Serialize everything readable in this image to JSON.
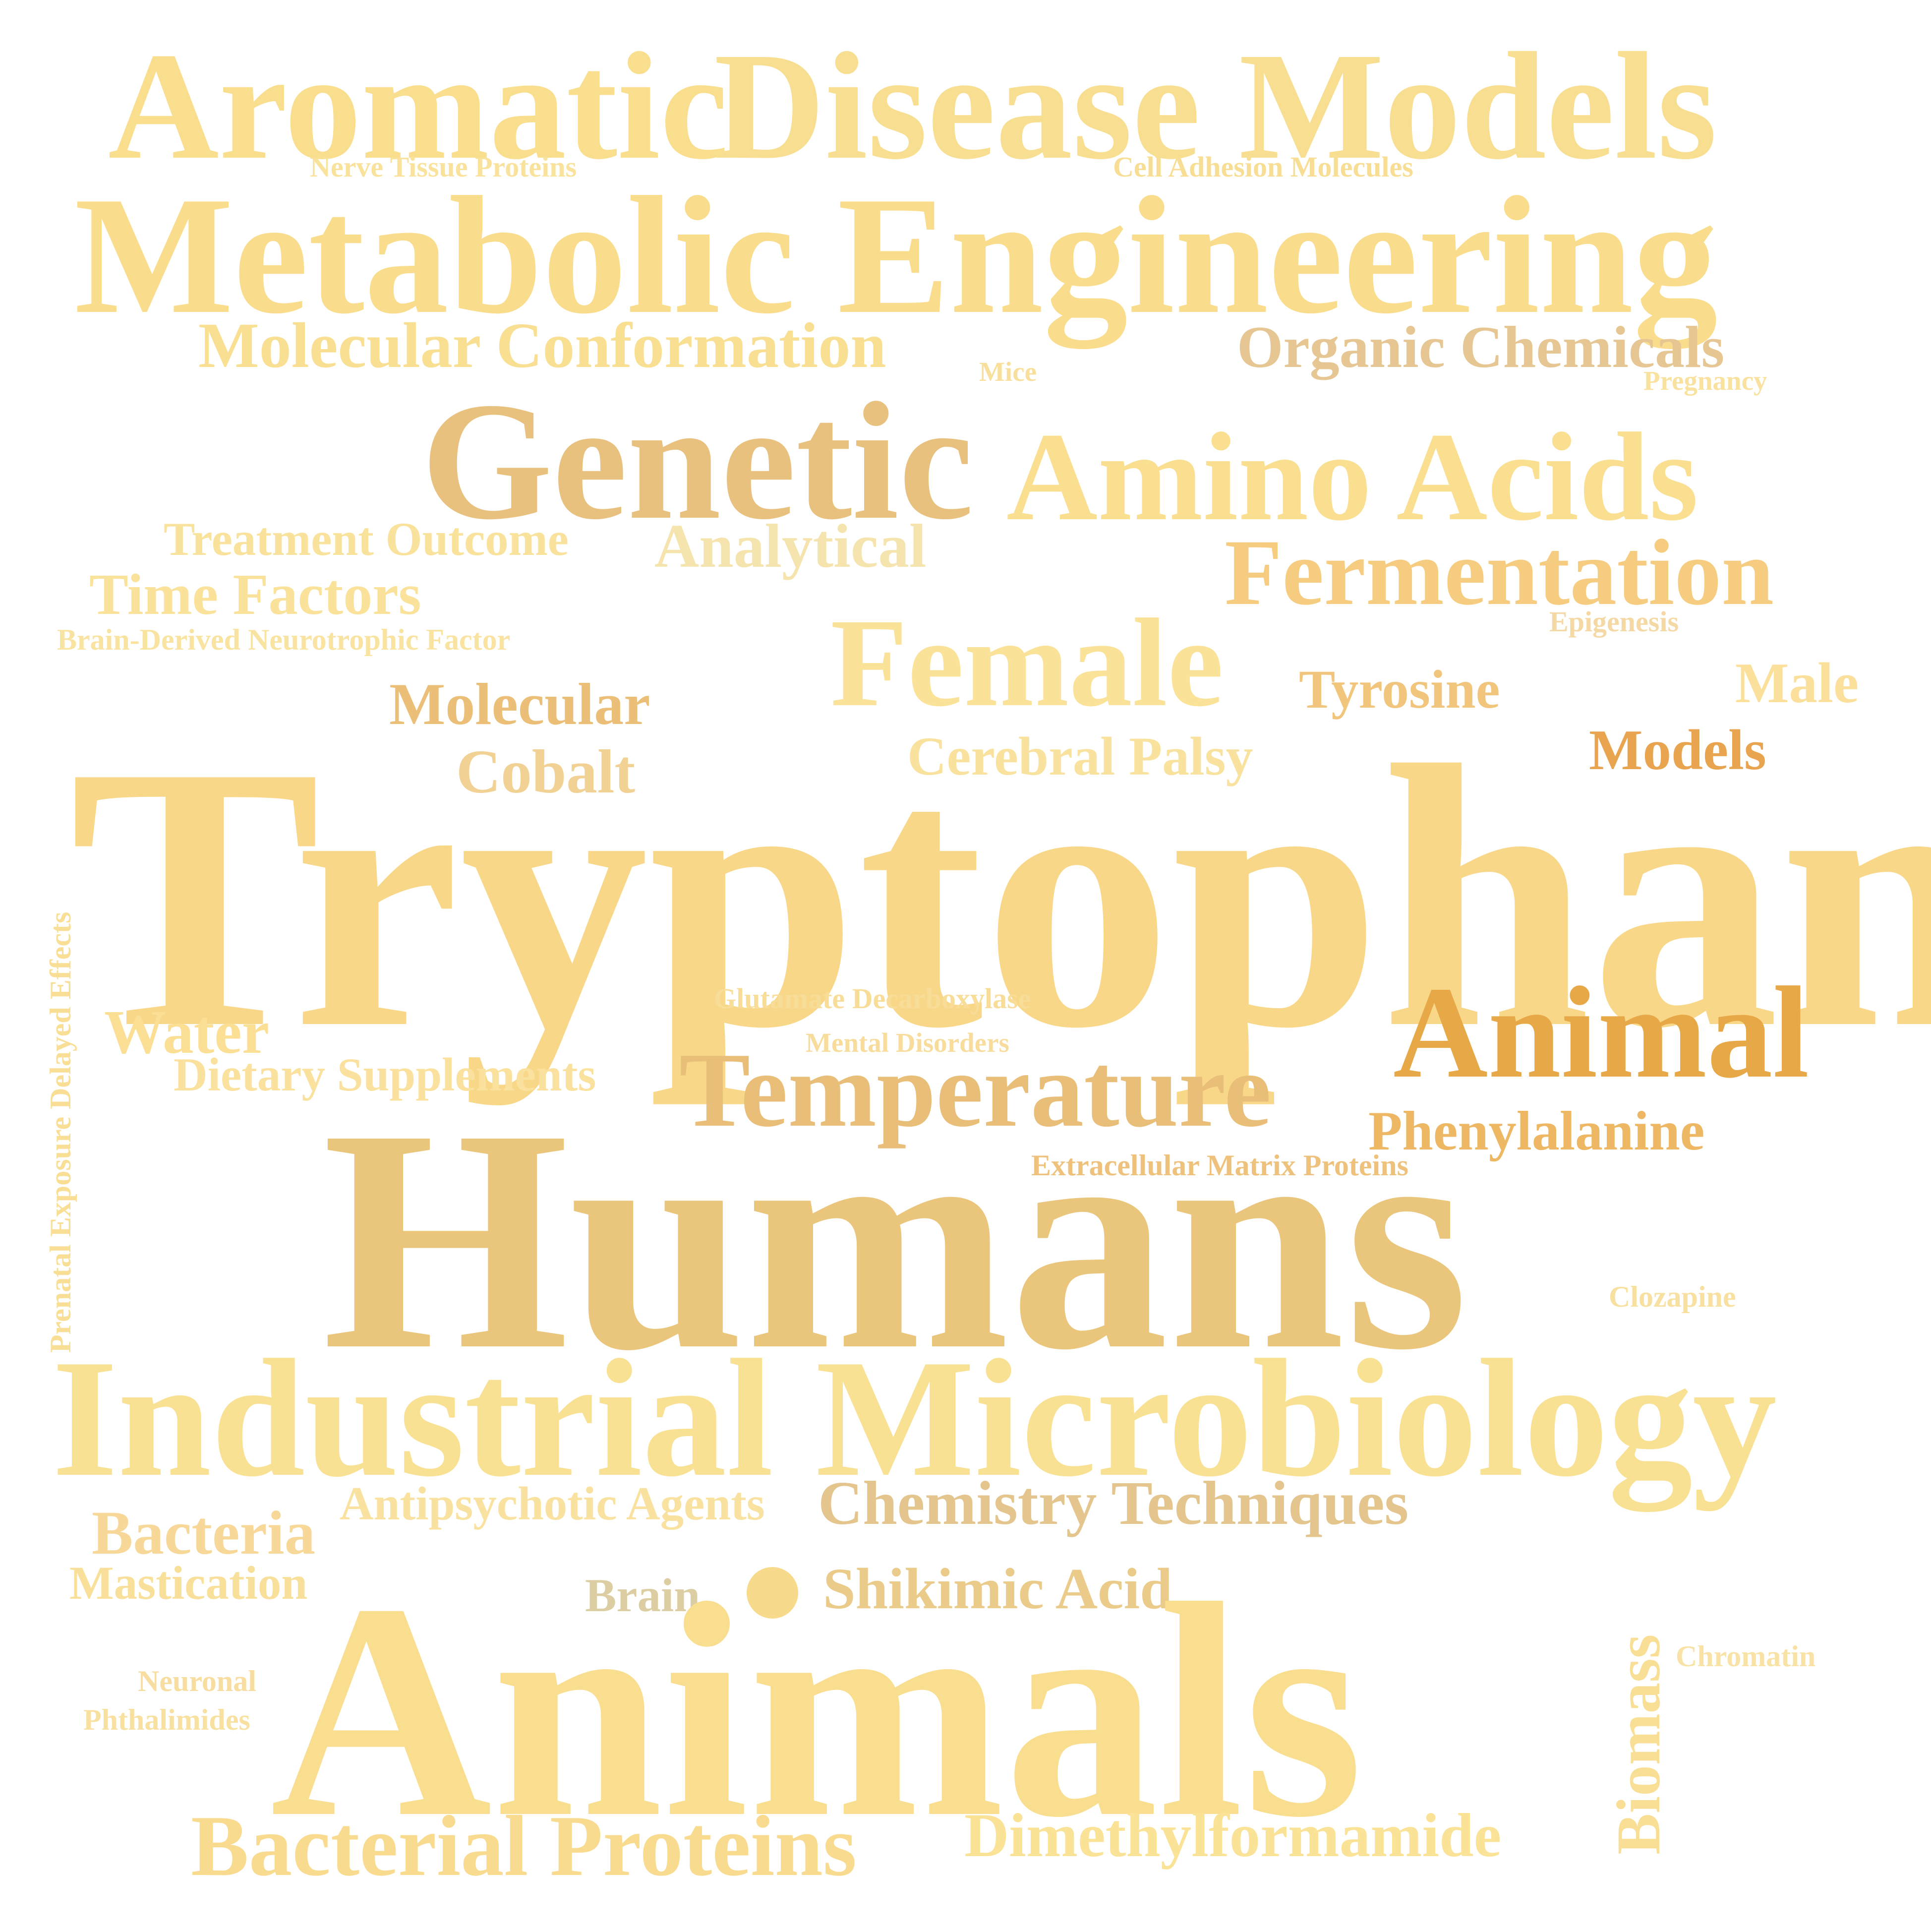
{
  "words": [
    {
      "id": "aromatic",
      "text": "Aromatic",
      "color": "#F9DE8E"
    },
    {
      "id": "disease-models",
      "text": "Disease Models",
      "color": "#F8DE90"
    },
    {
      "id": "nerve-tissue-proteins",
      "text": "Nerve Tissue Proteins",
      "color": "#F9E29C"
    },
    {
      "id": "cell-adhesion-molecules",
      "text": "Cell Adhesion Molecules",
      "color": "#F8DE95"
    },
    {
      "id": "metabolic-engineering",
      "text": "Metabolic Engineering",
      "color": "#F9DD8C"
    },
    {
      "id": "molecular-conformation",
      "text": "Molecular Conformation",
      "color": "#F9DF92"
    },
    {
      "id": "organic-chemicals",
      "text": "Organic Chemicals",
      "color": "#E6C794"
    },
    {
      "id": "mice",
      "text": "Mice",
      "color": "#F8DF9C"
    },
    {
      "id": "pregnancy",
      "text": "Pregnancy",
      "color": "#F9E2A0"
    },
    {
      "id": "genetic",
      "text": "Genetic",
      "color": "#E8C17F"
    },
    {
      "id": "amino-acids",
      "text": "Amino Acids",
      "color": "#FADF90"
    },
    {
      "id": "treatment-outcome",
      "text": "Treatment Outcome",
      "color": "#F9E29B"
    },
    {
      "id": "analytical",
      "text": "Analytical",
      "color": "#F6E4AE"
    },
    {
      "id": "fermentation",
      "text": "Fermentation",
      "color": "#F6CD80"
    },
    {
      "id": "time-factors",
      "text": "Time Factors",
      "color": "#FAE29A"
    },
    {
      "id": "brain-derived-neurotrophic-factor",
      "text": "Brain-Derived Neurotrophic Factor",
      "color": "#F9E3A1"
    },
    {
      "id": "epigenesis",
      "text": "Epigenesis",
      "color": "#F5D9A4"
    },
    {
      "id": "female",
      "text": "Female",
      "color": "#FAE398"
    },
    {
      "id": "molecular",
      "text": "Molecular",
      "color": "#EBBF78"
    },
    {
      "id": "tyrosine",
      "text": "Tyrosine",
      "color": "#F2C57D"
    },
    {
      "id": "male",
      "text": "Male",
      "color": "#FBE09B"
    },
    {
      "id": "cobalt",
      "text": "Cobalt",
      "color": "#F2D194"
    },
    {
      "id": "cerebral-palsy",
      "text": "Cerebral Palsy",
      "color": "#F9E29E"
    },
    {
      "id": "models",
      "text": "Models",
      "color": "#E9A44F"
    },
    {
      "id": "tryptophan",
      "text": "Tryptophan",
      "color": "#F8D888"
    },
    {
      "id": "prenatal-exposure-delayed-effects",
      "text": "Prenatal Exposure Delayed Effects",
      "color": "#F9DE95"
    },
    {
      "id": "glutamate-decarboxylase",
      "text": "Glutamate Decarboxylase",
      "color": "#F7DD98"
    },
    {
      "id": "water",
      "text": "Water",
      "color": "#FADF95"
    },
    {
      "id": "mental-disorders",
      "text": "Mental Disorders",
      "color": "#F8DC9C"
    },
    {
      "id": "animal",
      "text": "Animal",
      "color": "#E7A848"
    },
    {
      "id": "dietary-supplements",
      "text": "Dietary Supplements",
      "color": "#FAE29E"
    },
    {
      "id": "temperature",
      "text": "Temperature",
      "color": "#E8BE78"
    },
    {
      "id": "phenylalanine",
      "text": "Phenylalanine",
      "color": "#EDB764"
    },
    {
      "id": "extracellular-matrix-proteins",
      "text": "Extracellular Matrix Proteins",
      "color": "#EEC27C"
    },
    {
      "id": "humans",
      "text": "Humans",
      "color": "#EAC57C"
    },
    {
      "id": "clozapine",
      "text": "Clozapine",
      "color": "#F8E0A0"
    },
    {
      "id": "industrial-microbiology",
      "text": "Industrial Microbiology",
      "color": "#F9E193"
    },
    {
      "id": "antipsychotic-agents",
      "text": "Antipsychotic Agents",
      "color": "#F9E19F"
    },
    {
      "id": "chemistry-techniques",
      "text": "Chemistry Techniques",
      "color": "#E3C58D"
    },
    {
      "id": "bacteria",
      "text": "Bacteria",
      "color": "#F7D898"
    },
    {
      "id": "mastication",
      "text": "Mastication",
      "color": "#F9E09A"
    },
    {
      "id": "brain",
      "text": "Brain",
      "color": "#DCCDA3"
    },
    {
      "id": "shikimic-acid",
      "text": "Shikimic Acid",
      "color": "#EACB8A"
    },
    {
      "id": "biomass",
      "text": "Biomass",
      "color": "#F9DF95"
    },
    {
      "id": "chromatin",
      "text": "Chromatin",
      "color": "#F8E2A5"
    },
    {
      "id": "neuronal",
      "text": "Neuronal",
      "color": "#F7DDA0"
    },
    {
      "id": "phthalimides",
      "text": "Phthalimides",
      "color": "#F8E0A0"
    },
    {
      "id": "animals",
      "text": "Animals",
      "color": "#F9DE8F"
    },
    {
      "id": "bacterial-proteins",
      "text": "Bacterial Proteins",
      "color": "#F8DB8F"
    },
    {
      "id": "dimethylformamide",
      "text": "Dimethylformamide",
      "color": "#FAE296"
    }
  ],
  "dot_color": "#F8DA8C"
}
